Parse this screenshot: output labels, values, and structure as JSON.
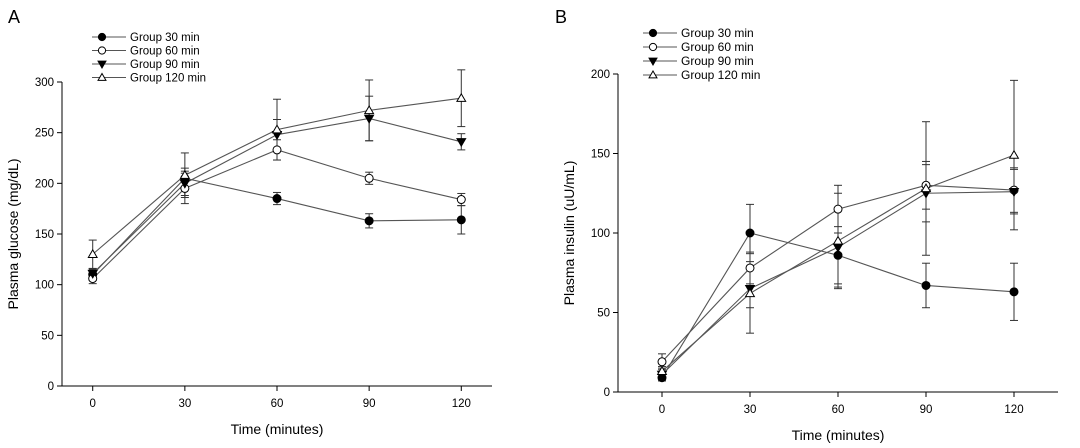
{
  "chart_data": [
    {
      "panel_label": "A",
      "type": "line",
      "xlabel": "Time (minutes)",
      "ylabel": "Plasma glucose (mg/dL)",
      "x": [
        0,
        30,
        60,
        90,
        120
      ],
      "xticks": [
        "0",
        "30",
        "60",
        "90",
        "120"
      ],
      "xlim": [
        -10,
        130
      ],
      "ylim": [
        0,
        300
      ],
      "yticks": [
        0,
        50,
        100,
        150,
        200,
        250,
        300
      ],
      "legend_position": "top-left",
      "series": [
        {
          "name": "Group 30 min",
          "marker": "filled-circle",
          "values": [
            110,
            205,
            185,
            163,
            164
          ],
          "errors": [
            5,
            10,
            6,
            7,
            14
          ]
        },
        {
          "name": "Group 60 min",
          "marker": "open-circle",
          "values": [
            106,
            195,
            233,
            205,
            184
          ],
          "errors": [
            5,
            15,
            10,
            6,
            6
          ]
        },
        {
          "name": "Group 90 min",
          "marker": "filled-triangle-down",
          "values": [
            111,
            200,
            248,
            264,
            241
          ],
          "errors": [
            5,
            12,
            15,
            22,
            8
          ]
        },
        {
          "name": "Group 120 min",
          "marker": "open-triangle-up",
          "values": [
            130,
            208,
            253,
            272,
            284
          ],
          "errors": [
            14,
            22,
            30,
            30,
            28
          ]
        }
      ]
    },
    {
      "panel_label": "B",
      "type": "line",
      "xlabel": "Time (minutes)",
      "ylabel": "Plasma insulin (uU/mL)",
      "x": [
        0,
        30,
        60,
        90,
        120
      ],
      "xticks": [
        "0",
        "30",
        "60",
        "90",
        "120"
      ],
      "xlim": [
        -15,
        135
      ],
      "ylim": [
        0,
        200
      ],
      "yticks": [
        0,
        50,
        100,
        150,
        200
      ],
      "legend_position": "top-left",
      "series": [
        {
          "name": "Group 30 min",
          "marker": "filled-circle",
          "values": [
            9,
            100,
            86,
            67,
            63
          ],
          "errors": [
            2,
            18,
            18,
            14,
            18
          ]
        },
        {
          "name": "Group 60 min",
          "marker": "open-circle",
          "values": [
            19,
            78,
            115,
            130,
            127
          ],
          "errors": [
            5,
            10,
            15,
            15,
            14
          ]
        },
        {
          "name": "Group 90 min",
          "marker": "filled-triangle-down",
          "values": [
            11,
            65,
            91,
            125,
            126
          ],
          "errors": [
            4,
            12,
            25,
            18,
            14
          ]
        },
        {
          "name": "Group 120 min",
          "marker": "open-triangle-up",
          "values": [
            13,
            62,
            95,
            128,
            149
          ],
          "errors": [
            3,
            25,
            30,
            42,
            47
          ]
        }
      ]
    }
  ]
}
